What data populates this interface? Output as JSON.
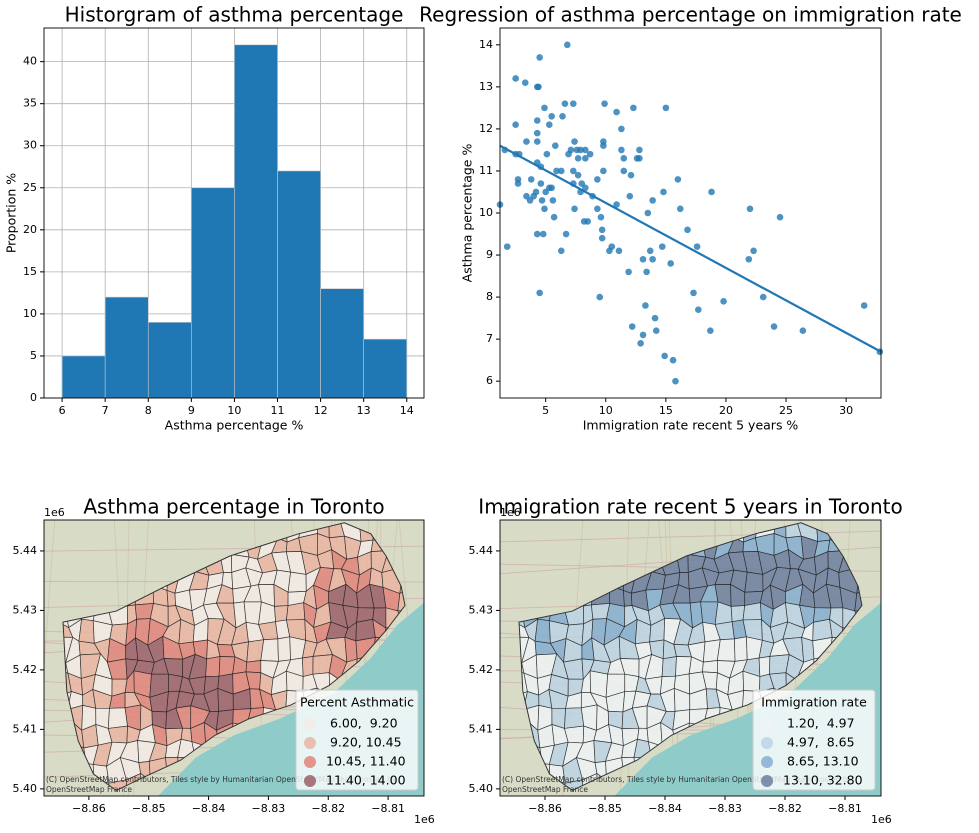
{
  "chart_data": [
    {
      "type": "histogram",
      "title": "Historgram of asthma percentage",
      "xlabel": "Asthma percentage %",
      "ylabel": "Proportion %",
      "bins": [
        6,
        7,
        8,
        9,
        10,
        11,
        12,
        13,
        14
      ],
      "counts": [
        5,
        12,
        9,
        25,
        42,
        27,
        13,
        7
      ],
      "color": "#1f77b4",
      "xlim": [
        5.58,
        14.4
      ],
      "ylim": [
        0,
        44
      ],
      "xticks": [
        6,
        7,
        8,
        9,
        10,
        11,
        12,
        13,
        14
      ],
      "yticks": [
        0,
        5,
        10,
        15,
        20,
        25,
        30,
        35,
        40
      ],
      "grid": true
    },
    {
      "type": "scatter",
      "title": "Regression of asthma percentage on immigration rate",
      "xlabel": "Immigration rate recent 5 years %",
      "ylabel": "Asthma percentage %",
      "x": [
        1.2,
        1.6,
        1.8,
        2.5,
        2.5,
        2.5,
        2.7,
        2.7,
        2.8,
        3.3,
        3.4,
        3.4,
        3.7,
        3.8,
        4.0,
        4.2,
        4.3,
        4.3,
        4.3,
        4.3,
        4.4,
        4.5,
        4.3,
        4.6,
        4.6,
        4.3,
        4.5,
        4.8,
        4.9,
        4.7,
        5.1,
        5.0,
        5.3,
        5.3,
        5.5,
        4.9,
        5.5,
        5.6,
        5.7,
        5.8,
        5.9,
        6.3,
        6.3,
        6.6,
        6.4,
        6.7,
        6.8,
        6.9,
        7.1,
        7.3,
        7.3,
        7.3,
        7.4,
        7.4,
        7.6,
        7.7,
        7.7,
        7.9,
        7.9,
        8.0,
        8.2,
        8.3,
        8.3,
        8.3,
        8.5,
        8.7,
        8.9,
        9.3,
        9.3,
        9.5,
        9.6,
        9.7,
        9.7,
        9.8,
        9.9,
        9.8,
        9.8,
        10.3,
        10.5,
        10.9,
        10.9,
        11.1,
        11.3,
        11.3,
        11.5,
        11.5,
        11.9,
        12.0,
        12.1,
        12.2,
        12.3,
        12.6,
        12.8,
        12.8,
        12.9,
        13.1,
        13.1,
        13.3,
        13.4,
        13.5,
        13.7,
        13.9,
        13.9,
        14.1,
        14.2,
        14.7,
        14.8,
        14.9,
        15.0,
        15.4,
        15.6,
        15.8,
        16.0,
        16.2,
        16.8,
        17.3,
        17.6,
        17.7,
        18.7,
        18.8,
        19.8,
        21.9,
        22.0,
        22.3,
        23.1,
        24.0,
        24.5,
        26.4,
        31.5,
        32.8
      ],
      "y": [
        10.2,
        11.5,
        9.2,
        13.2,
        12.1,
        11.4,
        10.8,
        10.7,
        11.4,
        13.1,
        11.7,
        10.4,
        10.3,
        10.8,
        10.4,
        10.5,
        12.2,
        11.7,
        11.2,
        13.0,
        13.0,
        13.7,
        11.9,
        11.1,
        10.7,
        9.5,
        8.1,
        9.5,
        12.5,
        10.3,
        11.4,
        10.5,
        10.6,
        12.1,
        12.3,
        10.1,
        10.6,
        10.3,
        9.9,
        11.6,
        11.0,
        11.0,
        9.1,
        12.6,
        12.3,
        9.5,
        14.0,
        11.4,
        11.5,
        12.6,
        11.0,
        10.7,
        10.1,
        11.7,
        11.5,
        11.3,
        10.9,
        10.5,
        11.5,
        10.7,
        9.8,
        10.6,
        11.5,
        11.3,
        9.8,
        11.4,
        10.4,
        10.1,
        10.8,
        8.0,
        9.9,
        9.4,
        9.6,
        11.6,
        12.6,
        11.7,
        11.0,
        9.1,
        9.2,
        10.2,
        12.4,
        9.1,
        12.0,
        11.5,
        11.3,
        11.0,
        8.6,
        10.4,
        10.9,
        7.3,
        12.5,
        11.3,
        11.5,
        11.3,
        6.9,
        7.1,
        8.9,
        7.8,
        8.6,
        10.0,
        9.1,
        8.9,
        10.3,
        7.5,
        7.2,
        9.2,
        10.5,
        6.6,
        12.5,
        8.8,
        6.5,
        6.0,
        10.8,
        10.1,
        9.6,
        8.1,
        9.2,
        7.7,
        7.2,
        10.5,
        7.9,
        8.9,
        10.1,
        9.1,
        8.0,
        7.3,
        9.9,
        7.2,
        7.8,
        6.7
      ],
      "color": "#1f77b4",
      "regression_line": {
        "x": [
          1.2,
          32.9
        ],
        "y": [
          11.6,
          6.7
        ]
      },
      "xlim": [
        1.2,
        32.9
      ],
      "ylim": [
        5.6,
        14.4
      ],
      "xticks": [
        5,
        10,
        15,
        20,
        25,
        30
      ],
      "yticks": [
        6,
        7,
        8,
        9,
        10,
        11,
        12,
        13,
        14
      ]
    },
    {
      "type": "map",
      "title": "Asthma percentage in Toronto",
      "xlim": [
        -8.8675,
        -8.804
      ],
      "ylim": [
        5.3988,
        5.4452
      ],
      "xticks": [
        {
          "value": -8.86,
          "label": "−8.86"
        },
        {
          "value": -8.85,
          "label": "−8.85"
        },
        {
          "value": -8.84,
          "label": "−8.84"
        },
        {
          "value": -8.83,
          "label": "−8.83"
        },
        {
          "value": -8.82,
          "label": "−8.82"
        },
        {
          "value": -8.81,
          "label": "−8.81"
        }
      ],
      "yticks": [
        {
          "value": 5.4,
          "label": "5.40"
        },
        5.41,
        5.42,
        5.43,
        5.44
      ],
      "x_offset_label": "1e6",
      "y_offset_label": "1e6",
      "legend": {
        "title": "Percent Asthmatic",
        "labels": [
          " 6.00,  9.20",
          " 9.20, 10.45",
          "10.45, 11.40",
          "11.40, 14.00"
        ],
        "colors": [
          "#f5ebe6",
          "#eab5a2",
          "#e2847a",
          "#9b5f67"
        ]
      },
      "legend_position": "lower right",
      "attribution": [
        "(C) OpenStreetMap contributors, Tiles style by Humanitarian OpenStreetMap Team hosted by",
        "OpenStreetMap France"
      ]
    },
    {
      "type": "map",
      "title": "Immigration rate recent 5 years in Toronto",
      "xlim": [
        -8.8675,
        -8.804
      ],
      "ylim": [
        5.3988,
        5.4452
      ],
      "xticks": [
        {
          "value": -8.86,
          "label": "−8.86"
        },
        {
          "value": -8.85,
          "label": "−8.85"
        },
        {
          "value": -8.84,
          "label": "−8.84"
        },
        {
          "value": -8.83,
          "label": "−8.83"
        },
        {
          "value": -8.82,
          "label": "−8.82"
        },
        {
          "value": -8.81,
          "label": "−8.81"
        }
      ],
      "yticks": [
        {
          "value": 5.4,
          "label": "5.40"
        },
        5.41,
        5.42,
        5.43,
        5.44
      ],
      "x_offset_label": "1e6",
      "y_offset_label": "1e6",
      "legend": {
        "title": "Immigration rate",
        "labels": [
          " 1.20,  4.97",
          " 4.97,  8.65",
          " 8.65, 13.10",
          "13.10, 32.80"
        ],
        "colors": [
          "#eef3f6",
          "#bcd3e4",
          "#86aed0",
          "#6c7e9f"
        ]
      },
      "legend_position": "lower right",
      "attribution": [
        "(C) OpenStreetMap contributors, Tiles style by Humanitarian OpenStreetMap Team hosted by",
        "OpenStreetMap France"
      ]
    }
  ]
}
